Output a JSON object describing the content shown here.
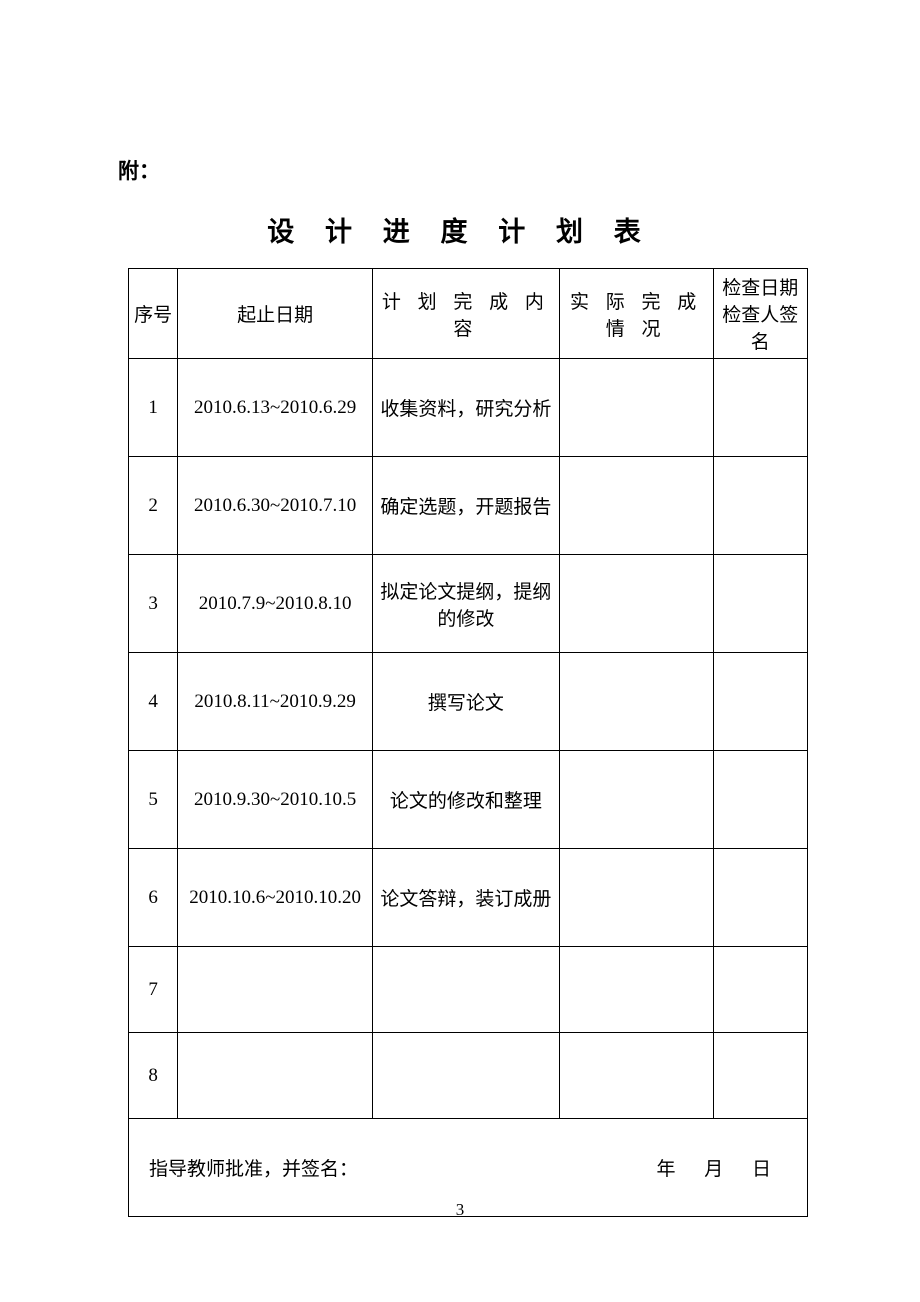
{
  "attachment_label": "附：",
  "title": "设 计 进 度 计 划 表",
  "table": {
    "headers": {
      "num": "序号",
      "date": "起止日期",
      "plan": "计 划 完 成 内 容",
      "actual": "实 际 完 成 情 况",
      "check": "检查日期检查人签名"
    },
    "rows": [
      {
        "num": "1",
        "date": "2010.6.13~2010.6.29",
        "plan": "收集资料，研究分析",
        "actual": "",
        "check": ""
      },
      {
        "num": "2",
        "date": "2010.6.30~2010.7.10",
        "plan": "确定选题，开题报告",
        "actual": "",
        "check": ""
      },
      {
        "num": "3",
        "date": "2010.7.9~2010.8.10",
        "plan": "拟定论文提纲，提纲的修改",
        "actual": "",
        "check": ""
      },
      {
        "num": "4",
        "date": "2010.8.11~2010.9.29",
        "plan": "撰写论文",
        "actual": "",
        "check": ""
      },
      {
        "num": "5",
        "date": "2010.9.30~2010.10.5",
        "plan": "论文的修改和整理",
        "actual": "",
        "check": ""
      },
      {
        "num": "6",
        "date": "2010.10.6~2010.10.20",
        "plan": "论文答辩，装订成册",
        "actual": "",
        "check": ""
      },
      {
        "num": "7",
        "date": "",
        "plan": "",
        "actual": "",
        "check": ""
      },
      {
        "num": "8",
        "date": "",
        "plan": "",
        "actual": "",
        "check": ""
      }
    ],
    "footer": {
      "approve_label": "指导教师批准，并签名：",
      "year": "年",
      "month": "月",
      "day": "日"
    }
  },
  "page_number": "3"
}
